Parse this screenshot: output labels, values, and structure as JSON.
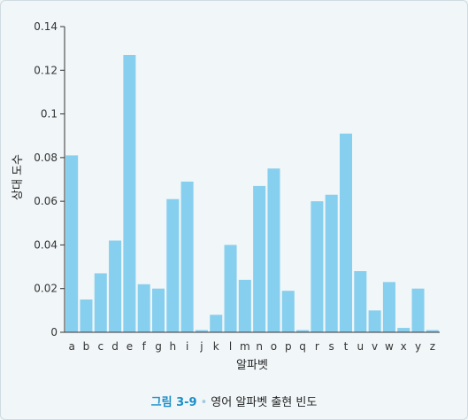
{
  "chart_data": {
    "type": "bar",
    "categories": [
      "a",
      "b",
      "c",
      "d",
      "e",
      "f",
      "g",
      "h",
      "i",
      "j",
      "k",
      "l",
      "m",
      "n",
      "o",
      "p",
      "q",
      "r",
      "s",
      "t",
      "u",
      "v",
      "w",
      "x",
      "y",
      "z"
    ],
    "values": [
      0.081,
      0.015,
      0.027,
      0.042,
      0.127,
      0.022,
      0.02,
      0.061,
      0.069,
      0.001,
      0.008,
      0.04,
      0.024,
      0.067,
      0.075,
      0.019,
      0.001,
      0.06,
      0.063,
      0.091,
      0.028,
      0.01,
      0.023,
      0.002,
      0.02,
      0.001
    ],
    "xlabel": "알파벳",
    "ylabel": "상대 도수",
    "ylim": [
      0,
      0.14
    ],
    "yticks": [
      "0",
      "0.02",
      "0.04",
      "0.06",
      "0.08",
      "0.1",
      "0.12",
      "0.14"
    ],
    "grid": false,
    "bar_color": "#87cfee"
  },
  "caption": {
    "number": "그림 3-9",
    "separator": "•",
    "text": "영어 알파벳 출현 빈도"
  }
}
